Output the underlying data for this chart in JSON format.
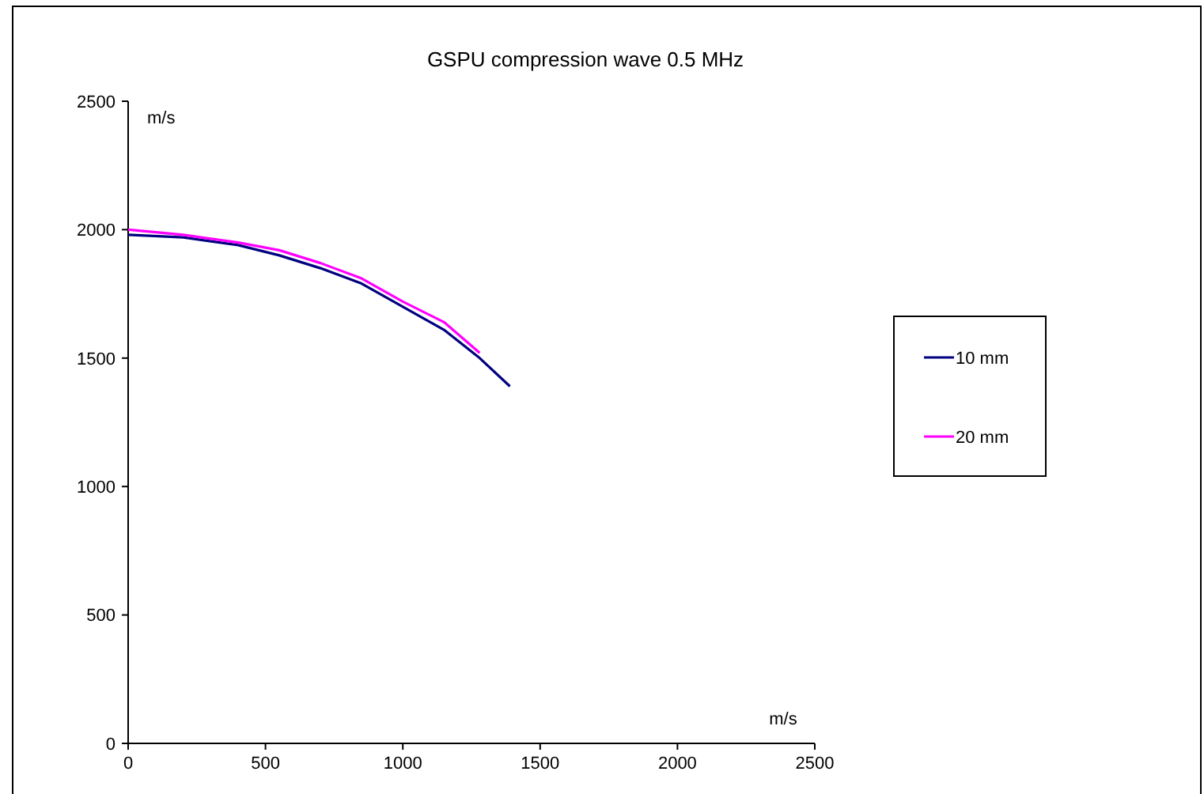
{
  "chart_data": {
    "type": "line",
    "title": "GSPU compression wave 0.5 MHz",
    "xlabel": "m/s",
    "ylabel": "m/s",
    "xlim": [
      0,
      2500
    ],
    "xticks": [
      0,
      500,
      1000,
      1500,
      2000,
      2500
    ],
    "ylim": [
      0,
      2500
    ],
    "yticks": [
      0,
      500,
      1000,
      1500,
      2000,
      2500
    ],
    "grid": false,
    "legend": "right",
    "marker": "none",
    "line_style": "solid",
    "series": [
      {
        "name": "10 mm",
        "color": "#000080",
        "x": [
          0,
          200,
          400,
          550,
          700,
          850,
          1000,
          1150,
          1280,
          1390
        ],
        "values": [
          1980,
          1970,
          1940,
          1900,
          1850,
          1790,
          1700,
          1610,
          1500,
          1390
        ]
      },
      {
        "name": "20 mm",
        "color": "#ff00ff",
        "x": [
          0,
          200,
          400,
          550,
          700,
          850,
          1000,
          1150,
          1280
        ],
        "values": [
          2000,
          1980,
          1950,
          1920,
          1870,
          1810,
          1720,
          1640,
          1520
        ]
      }
    ]
  }
}
